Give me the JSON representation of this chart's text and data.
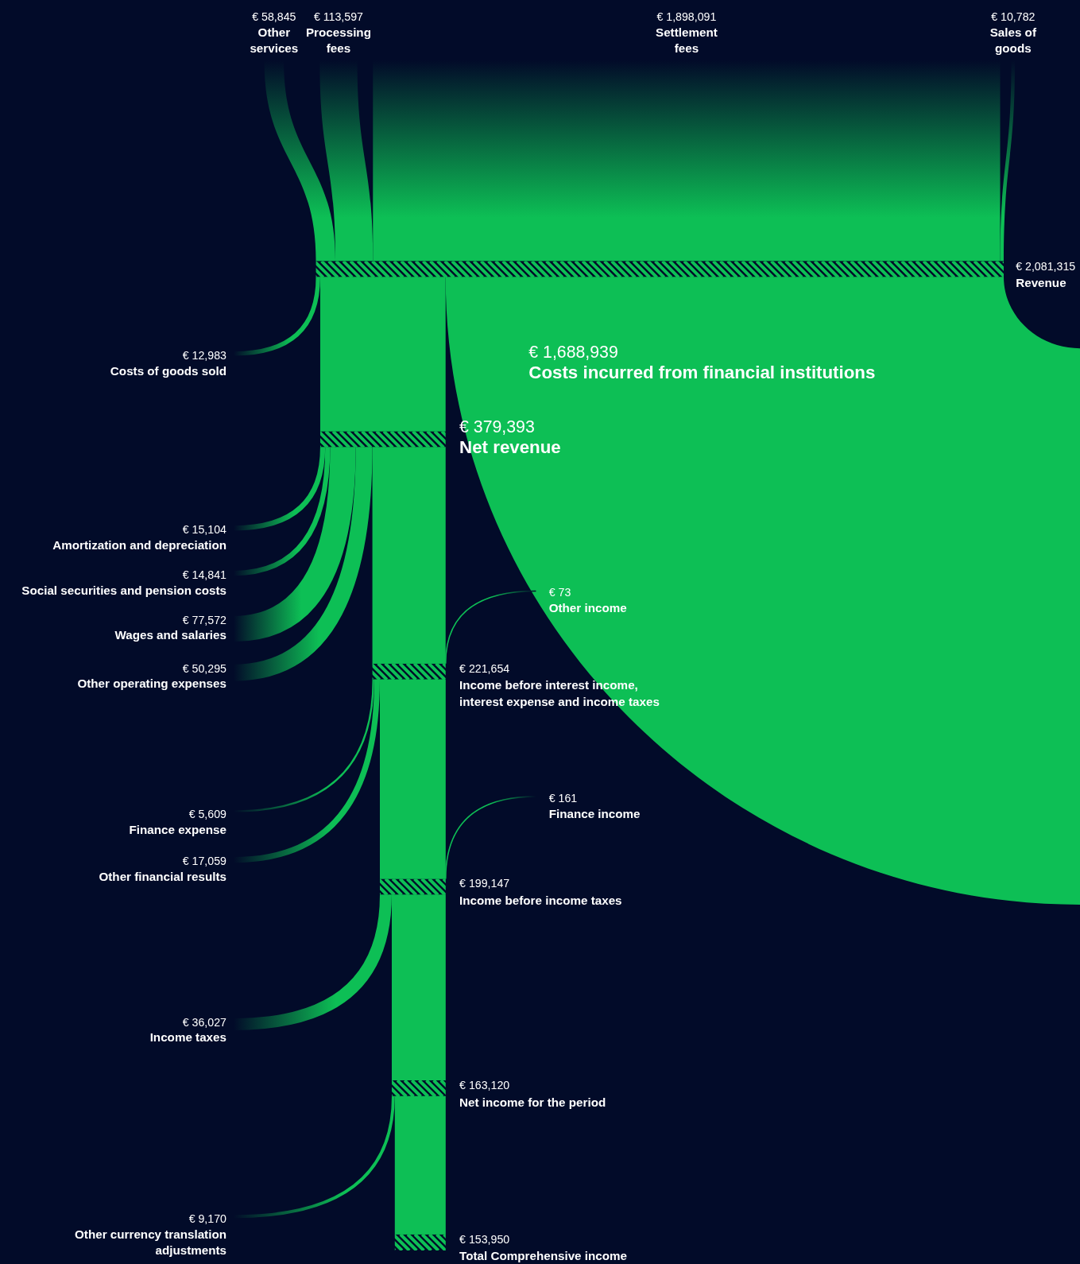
{
  "chart_data": {
    "type": "other",
    "categories": [
      "Other services",
      "Processing fees",
      "Settlement fees",
      "Sales of goods",
      "Revenue",
      "Costs incurred from financial institutions",
      "Costs of goods sold",
      "Net revenue",
      "Amortization and depreciation",
      "Social securities and pension costs",
      "Wages and salaries",
      "Other operating expenses",
      "Other income",
      "Income before interest income, interest expense and income taxes",
      "Finance expense",
      "Other financial results",
      "Finance income",
      "Income before income taxes",
      "Income taxes",
      "Net income for the period",
      "Other currency translation adjustments",
      "Total Comprehensive income"
    ],
    "values": [
      58845,
      113597,
      1898091,
      10782,
      2081315,
      1688939,
      12983,
      379393,
      15104,
      14841,
      77572,
      50295,
      73,
      221654,
      5609,
      17059,
      161,
      199147,
      36027,
      163120,
      9170,
      153950
    ],
    "value_labels": [
      "€ 58,845",
      "€ 113,597",
      "€ 1,898,091",
      "€ 10,782",
      "€ 2,081,315",
      "€ 1,688,939",
      "€ 12,983",
      "€ 379,393",
      "€ 15,104",
      "€ 14,841",
      "€ 77,572",
      "€ 50,295",
      "€ 73",
      "€ 221,654",
      "€ 5,609",
      "€ 17,059",
      "€ 161",
      "€ 199,147",
      "€ 36,027",
      "€ 163,120",
      "€ 9,170",
      "€ 153,950"
    ],
    "color": "#0dbf55"
  }
}
